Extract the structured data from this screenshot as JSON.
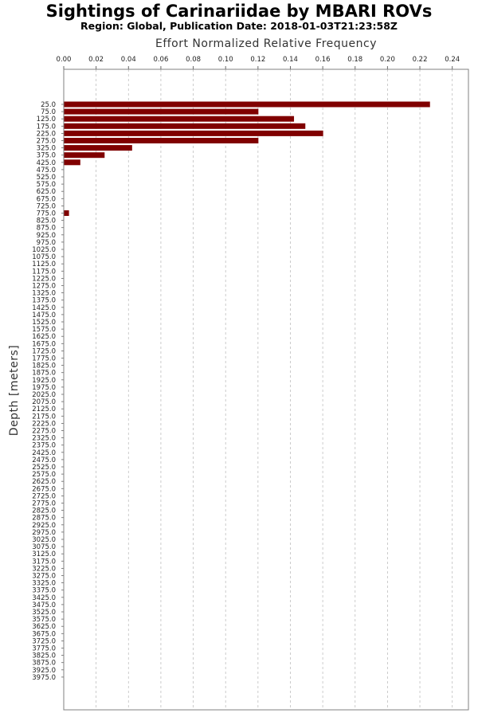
{
  "chart_data": {
    "type": "bar",
    "orientation": "horizontal",
    "title": "Sightings of Carinariidae by MBARI ROVs",
    "subtitle": "Region: Global, Publication Date: 2018-01-03T21:23:58Z",
    "xlabel": "Effort Normalized Relative Frequency",
    "ylabel": "Depth [meters]",
    "xlim": [
      0,
      0.25
    ],
    "x_ticks": [
      "0.00",
      "0.02",
      "0.04",
      "0.06",
      "0.08",
      "0.10",
      "0.12",
      "0.14",
      "0.16",
      "0.18",
      "0.20",
      "0.22",
      "0.24"
    ],
    "grid": true,
    "bar_color": "#800000",
    "categories": [
      "25.0",
      "75.0",
      "125.0",
      "175.0",
      "225.0",
      "275.0",
      "325.0",
      "375.0",
      "425.0",
      "475.0",
      "525.0",
      "575.0",
      "625.0",
      "675.0",
      "725.0",
      "775.0",
      "825.0",
      "875.0",
      "925.0",
      "975.0",
      "1025.0",
      "1075.0",
      "1125.0",
      "1175.0",
      "1225.0",
      "1275.0",
      "1325.0",
      "1375.0",
      "1425.0",
      "1475.0",
      "1525.0",
      "1575.0",
      "1625.0",
      "1675.0",
      "1725.0",
      "1775.0",
      "1825.0",
      "1875.0",
      "1925.0",
      "1975.0",
      "2025.0",
      "2075.0",
      "2125.0",
      "2175.0",
      "2225.0",
      "2275.0",
      "2325.0",
      "2375.0",
      "2425.0",
      "2475.0",
      "2525.0",
      "2575.0",
      "2625.0",
      "2675.0",
      "2725.0",
      "2775.0",
      "2825.0",
      "2875.0",
      "2925.0",
      "2975.0",
      "3025.0",
      "3075.0",
      "3125.0",
      "3175.0",
      "3225.0",
      "3275.0",
      "3325.0",
      "3375.0",
      "3425.0",
      "3475.0",
      "3525.0",
      "3575.0",
      "3625.0",
      "3675.0",
      "3725.0",
      "3775.0",
      "3825.0",
      "3875.0",
      "3925.0",
      "3975.0"
    ],
    "values": [
      0.226,
      0.12,
      0.142,
      0.149,
      0.16,
      0.12,
      0.042,
      0.025,
      0.01,
      0,
      0,
      0,
      0,
      0,
      0,
      0.003,
      0,
      0,
      0,
      0,
      0,
      0,
      0,
      0,
      0,
      0,
      0,
      0,
      0,
      0,
      0,
      0,
      0,
      0,
      0,
      0,
      0,
      0,
      0,
      0,
      0,
      0,
      0,
      0,
      0,
      0,
      0,
      0,
      0,
      0,
      0,
      0,
      0,
      0,
      0,
      0,
      0,
      0,
      0,
      0,
      0,
      0,
      0,
      0,
      0,
      0,
      0,
      0,
      0,
      0,
      0,
      0,
      0,
      0,
      0,
      0,
      0,
      0,
      0,
      0
    ]
  }
}
